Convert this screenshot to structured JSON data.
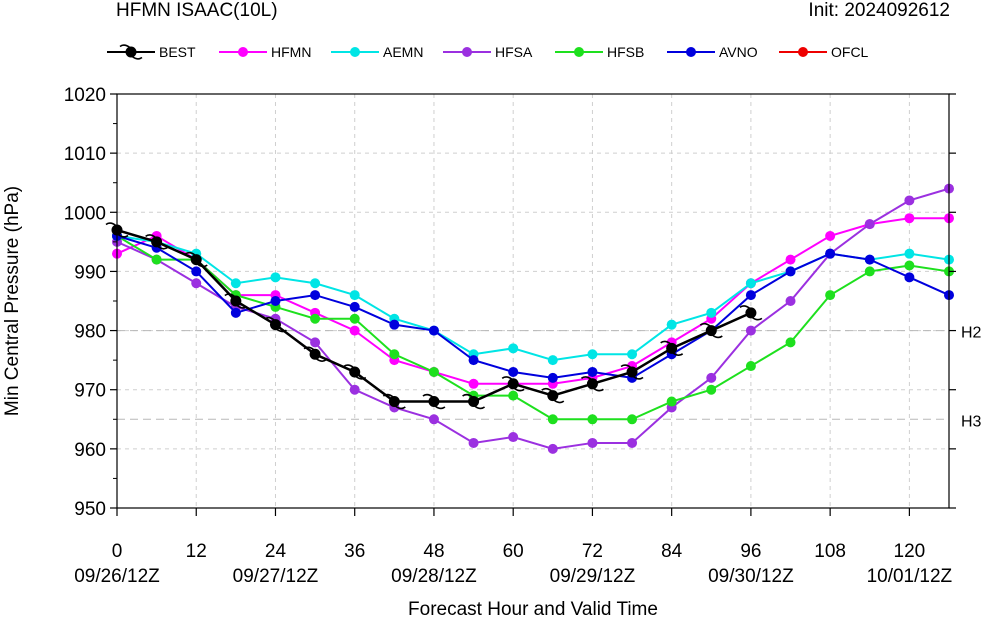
{
  "header": {
    "title": "HFMN ISAAC(10L)",
    "init": "Init: 2024092612"
  },
  "chart_data": {
    "type": "line",
    "title": "HFMN ISAAC(10L)",
    "xlabel": "Forecast Hour and Valid Time",
    "ylabel": "Min Central Pressure (hPa)",
    "xlim": [
      0,
      126
    ],
    "ylim": [
      950,
      1020
    ],
    "grid": true,
    "legend_position": "top",
    "x_ticks": [
      {
        "value": 0,
        "hour": "0",
        "date": "09/26/12Z"
      },
      {
        "value": 12,
        "hour": "12",
        "date": ""
      },
      {
        "value": 24,
        "hour": "24",
        "date": "09/27/12Z"
      },
      {
        "value": 36,
        "hour": "36",
        "date": ""
      },
      {
        "value": 48,
        "hour": "48",
        "date": "09/28/12Z"
      },
      {
        "value": 60,
        "hour": "60",
        "date": ""
      },
      {
        "value": 72,
        "hour": "72",
        "date": "09/29/12Z"
      },
      {
        "value": 84,
        "hour": "84",
        "date": ""
      },
      {
        "value": 96,
        "hour": "96",
        "date": "09/30/12Z"
      },
      {
        "value": 108,
        "hour": "108",
        "date": ""
      },
      {
        "value": 120,
        "hour": "120",
        "date": "10/01/12Z"
      }
    ],
    "y_ticks": [
      950,
      960,
      970,
      980,
      990,
      1000,
      1010,
      1020
    ],
    "reference_lines": [
      {
        "label": "H2",
        "y": 980
      },
      {
        "label": "H3",
        "y": 965
      }
    ],
    "series": [
      {
        "name": "BEST",
        "color": "#000000",
        "marker": "hurricane",
        "x": [
          0,
          6,
          12,
          18,
          24,
          30,
          36,
          42,
          48,
          54,
          60,
          66,
          72,
          78,
          84,
          90,
          96
        ],
        "values": [
          997,
          995,
          992,
          985,
          981,
          976,
          973,
          968,
          968,
          968,
          971,
          969,
          971,
          973,
          977,
          980,
          983
        ]
      },
      {
        "name": "HFMN",
        "color": "#ff00ff",
        "marker": "circle",
        "x": [
          0,
          6,
          12,
          18,
          24,
          30,
          36,
          42,
          48,
          54,
          60,
          66,
          72,
          78,
          84,
          90,
          96,
          102,
          108,
          114,
          120,
          126
        ],
        "values": [
          993,
          996,
          992,
          986,
          986,
          983,
          980,
          975,
          973,
          971,
          971,
          971,
          972,
          974,
          978,
          982,
          988,
          992,
          996,
          998,
          999,
          999
        ]
      },
      {
        "name": "AEMN",
        "color": "#00e5e5",
        "marker": "circle",
        "x": [
          0,
          6,
          12,
          18,
          24,
          30,
          36,
          42,
          48,
          54,
          60,
          66,
          72,
          78,
          84,
          90,
          96,
          102,
          108,
          114,
          120,
          126
        ],
        "values": [
          996,
          995,
          993,
          988,
          989,
          988,
          986,
          982,
          980,
          976,
          977,
          975,
          976,
          976,
          981,
          983,
          988,
          990,
          993,
          992,
          993,
          992
        ]
      },
      {
        "name": "HFSA",
        "color": "#9b30e0",
        "marker": "circle",
        "x": [
          0,
          6,
          12,
          18,
          24,
          30,
          36,
          42,
          48,
          54,
          60,
          66,
          72,
          78,
          84,
          90,
          96,
          102,
          108,
          114,
          120,
          126
        ],
        "values": [
          995,
          992,
          988,
          984,
          982,
          978,
          970,
          967,
          965,
          961,
          962,
          960,
          961,
          961,
          967,
          972,
          980,
          985,
          993,
          998,
          1002,
          1004
        ]
      },
      {
        "name": "HFSB",
        "color": "#1ee01e",
        "marker": "circle",
        "x": [
          0,
          6,
          12,
          18,
          24,
          30,
          36,
          42,
          48,
          54,
          60,
          66,
          72,
          78,
          84,
          90,
          96,
          102,
          108,
          114,
          120,
          126
        ],
        "values": [
          996,
          992,
          992,
          986,
          984,
          982,
          982,
          976,
          973,
          969,
          969,
          965,
          965,
          965,
          968,
          970,
          974,
          978,
          986,
          990,
          991,
          990
        ]
      },
      {
        "name": "AVNO",
        "color": "#0000dd",
        "marker": "circle",
        "x": [
          0,
          6,
          12,
          18,
          24,
          30,
          36,
          42,
          48,
          54,
          60,
          66,
          72,
          78,
          84,
          90,
          96,
          102,
          108,
          114,
          120,
          126
        ],
        "values": [
          996,
          994,
          990,
          983,
          985,
          986,
          984,
          981,
          980,
          975,
          973,
          972,
          973,
          972,
          976,
          980,
          986,
          990,
          993,
          992,
          989,
          986
        ]
      },
      {
        "name": "OFCL",
        "color": "#ee0000",
        "marker": "circle",
        "x": [],
        "values": []
      }
    ]
  }
}
